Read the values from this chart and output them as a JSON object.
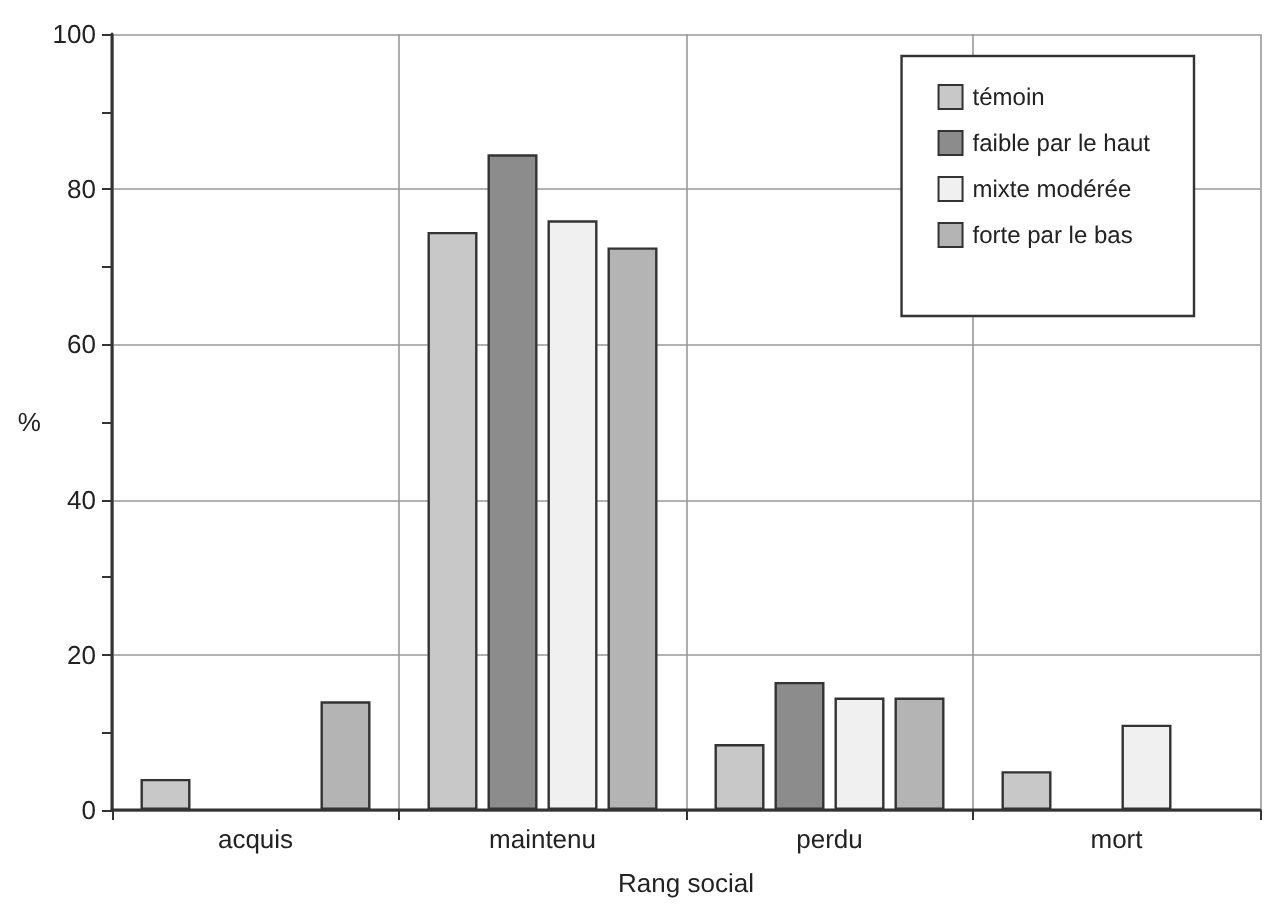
{
  "chart_data": {
    "type": "bar",
    "xlabel": "Rang social",
    "ylabel": "%",
    "categories": [
      "acquis",
      "maintenu",
      "perdu",
      "mort"
    ],
    "series": [
      {
        "name": "témoin",
        "color": "#c8c8c8",
        "values": [
          4,
          74.5,
          8.5,
          5
        ]
      },
      {
        "name": "faible par le haut",
        "color": "#8c8c8c",
        "values": [
          null,
          84.5,
          16.5,
          null
        ]
      },
      {
        "name": "mixte modérée",
        "color": "#f0f0f0",
        "values": [
          null,
          76,
          14.5,
          11
        ]
      },
      {
        "name": "forte par le bas",
        "color": "#b4b4b4",
        "values": [
          14,
          72.5,
          14.5,
          null
        ]
      }
    ],
    "ylim": [
      0,
      100
    ],
    "yticks": [
      0,
      {
        "value": 10,
        "label": null
      },
      20,
      {
        "value": 30,
        "label": null
      },
      40,
      {
        "value": 50,
        "label": null
      },
      60,
      {
        "value": 70,
        "label": null
      },
      80,
      {
        "value": 90,
        "label": null
      },
      100
    ],
    "grid": true,
    "legend": "top right"
  }
}
